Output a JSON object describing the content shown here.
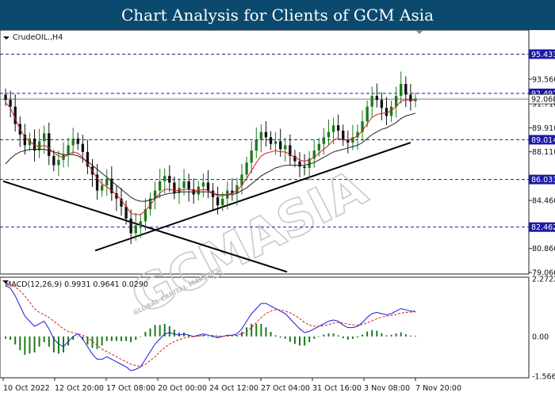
{
  "banner": {
    "title": "Chart Analysis for Clients of GCM Asia"
  },
  "watermark": {
    "text": "GCMASIA",
    "subtext": "GLOBAL CAPITAL MARKETS"
  },
  "chart_data": [
    {
      "type": "candlestick",
      "title": "CrudeOIL.,H4",
      "ylim": [
        79.06,
        97.0
      ],
      "y_ticks": [
        "93.560",
        "91.710",
        "89.910",
        "88.110",
        "84.460",
        "80.860",
        "79.060"
      ],
      "x_ticks": [
        "10 Oct 2022",
        "12 Oct 20:00",
        "17 Oct 08:00",
        "20 Oct 00:00",
        "24 Oct 12:00",
        "27 Oct 04:00",
        "31 Oct 16:00",
        "3 Nov 08:00",
        "7 Nov 20:00"
      ],
      "price_levels": [
        {
          "label": "95.433",
          "value": 95.433,
          "highlight": true
        },
        {
          "label": "92.492",
          "value": 92.492,
          "highlight": true
        },
        {
          "label": "92.060",
          "value": 92.06,
          "highlight": false
        },
        {
          "label": "89.014",
          "value": 89.014,
          "highlight": true
        },
        {
          "label": "86.033",
          "value": 86.033,
          "highlight": true
        },
        {
          "label": "82.462",
          "value": 82.462,
          "highlight": true
        }
      ],
      "close_series": [
        92.0,
        91.5,
        90.2,
        89.4,
        88.6,
        89.1,
        88.2,
        88.9,
        89.5,
        87.8,
        87.1,
        87.5,
        87.9,
        88.6,
        89.1,
        88.7,
        88.1,
        87.0,
        86.4,
        85.2,
        85.6,
        86.1,
        85.0,
        84.6,
        84.0,
        83.1,
        82.0,
        82.6,
        82.9,
        83.8,
        84.6,
        85.2,
        85.9,
        86.3,
        85.8,
        85.0,
        85.4,
        85.9,
        85.3,
        84.9,
        85.5,
        85.8,
        85.2,
        84.7,
        84.1,
        84.6,
        85.2,
        85.0,
        85.6,
        86.4,
        87.3,
        88.2,
        89.0,
        89.6,
        89.2,
        88.7,
        88.9,
        88.3,
        88.6,
        87.8,
        87.4,
        87.0,
        86.9,
        87.6,
        88.2,
        88.7,
        89.2,
        89.6,
        90.1,
        89.7,
        89.0,
        88.8,
        89.2,
        89.6,
        90.4,
        91.5,
        92.3,
        92.0,
        91.4,
        90.8,
        91.5,
        92.3,
        93.2,
        92.4,
        91.9,
        92.1
      ],
      "sma_fast": [
        91.8,
        91.4,
        90.6,
        89.8,
        89.2,
        88.9,
        88.6,
        88.5,
        88.6,
        88.4,
        88.0,
        87.8,
        87.7,
        87.9,
        88.1,
        88.0,
        87.7,
        87.2,
        86.7,
        86.1,
        85.7,
        85.5,
        85.2,
        84.9,
        84.5,
        84.0,
        83.5,
        83.4,
        83.4,
        83.7,
        84.1,
        84.6,
        85.0,
        85.3,
        85.3,
        85.2,
        85.2,
        85.3,
        85.3,
        85.2,
        85.2,
        85.3,
        85.2,
        85.0,
        84.8,
        84.8,
        84.9,
        85.0,
        85.2,
        85.6,
        86.1,
        86.7,
        87.3,
        87.8,
        88.0,
        88.1,
        88.2,
        88.1,
        88.1,
        87.9,
        87.7,
        87.5,
        87.4,
        87.5,
        87.7,
        88.0,
        88.3,
        88.6,
        89.0,
        89.1,
        89.0,
        89.0,
        89.1,
        89.3,
        89.7,
        90.2,
        90.7,
        90.9,
        91.0,
        91.0,
        91.2,
        91.5,
        91.9,
        92.0,
        92.0,
        92.0
      ],
      "sma_slow": [
        87.2,
        87.6,
        87.9,
        88.1,
        88.2,
        88.3,
        88.3,
        88.3,
        88.3,
        88.2,
        88.1,
        88.0,
        87.9,
        87.9,
        87.9,
        87.8,
        87.6,
        87.4,
        87.1,
        86.8,
        86.5,
        86.2,
        85.9,
        85.6,
        85.3,
        85.0,
        84.7,
        84.5,
        84.4,
        84.4,
        84.5,
        84.6,
        84.8,
        84.9,
        85.0,
        85.0,
        85.1,
        85.1,
        85.1,
        85.1,
        85.1,
        85.1,
        85.1,
        85.0,
        84.9,
        84.9,
        84.9,
        84.9,
        85.0,
        85.2,
        85.4,
        85.7,
        86.0,
        86.3,
        86.5,
        86.7,
        86.9,
        87.0,
        87.1,
        87.1,
        87.1,
        87.1,
        87.1,
        87.2,
        87.3,
        87.5,
        87.7,
        87.9,
        88.1,
        88.2,
        88.3,
        88.4,
        88.5,
        88.6,
        88.8,
        89.1,
        89.4,
        89.6,
        89.8,
        89.9,
        90.1,
        90.3,
        90.6,
        90.8,
        90.9,
        91.0
      ],
      "trendlines": [
        {
          "name": "support",
          "from": [
            0.175,
            80.7
          ],
          "to": [
            0.775,
            88.8
          ]
        },
        {
          "name": "upper-trend",
          "from": [
            0.0,
            85.9
          ],
          "to": [
            0.54,
            79.1
          ]
        }
      ],
      "colors": {
        "bull": "#1d7a1d",
        "bear": "#111111",
        "sma_fast": "#d22020",
        "sma_slow": "#222222",
        "level": "#1a1aa6",
        "trend": "#000000"
      }
    },
    {
      "type": "macd",
      "title": "MACD(12,26,9) 0.9931 0.9641 0.0290",
      "ylim": [
        -1.5669,
        2.2722
      ],
      "y_ticks": [
        "2.2722",
        "0.00",
        "-1.5669"
      ],
      "macd": [
        2.0,
        1.9,
        1.6,
        1.2,
        0.8,
        0.6,
        0.4,
        0.5,
        0.6,
        0.3,
        -0.1,
        -0.3,
        -0.4,
        -0.2,
        0.0,
        0.1,
        -0.1,
        -0.4,
        -0.7,
        -0.9,
        -0.9,
        -0.8,
        -0.9,
        -1.0,
        -1.1,
        -1.2,
        -1.35,
        -1.3,
        -1.2,
        -0.9,
        -0.6,
        -0.3,
        -0.1,
        0.1,
        0.15,
        0.1,
        0.05,
        0.1,
        0.05,
        0.0,
        0.05,
        0.1,
        0.05,
        0.0,
        -0.05,
        0.0,
        0.05,
        0.05,
        0.1,
        0.3,
        0.6,
        0.9,
        1.1,
        1.3,
        1.3,
        1.2,
        1.1,
        1.0,
        0.9,
        0.7,
        0.5,
        0.3,
        0.15,
        0.2,
        0.3,
        0.4,
        0.5,
        0.6,
        0.65,
        0.6,
        0.45,
        0.35,
        0.35,
        0.4,
        0.55,
        0.75,
        0.9,
        0.95,
        0.9,
        0.85,
        0.9,
        1.0,
        1.1,
        1.05,
        1.0,
        0.99
      ],
      "signal": [
        2.1,
        2.05,
        1.95,
        1.8,
        1.6,
        1.35,
        1.1,
        0.95,
        0.85,
        0.75,
        0.6,
        0.45,
        0.3,
        0.2,
        0.15,
        0.1,
        0.05,
        -0.05,
        -0.2,
        -0.35,
        -0.5,
        -0.6,
        -0.7,
        -0.8,
        -0.9,
        -1.0,
        -1.1,
        -1.15,
        -1.18,
        -1.1,
        -0.95,
        -0.8,
        -0.6,
        -0.45,
        -0.3,
        -0.2,
        -0.12,
        -0.07,
        -0.03,
        0.0,
        0.02,
        0.04,
        0.05,
        0.04,
        0.02,
        0.01,
        0.02,
        0.03,
        0.05,
        0.1,
        0.2,
        0.35,
        0.55,
        0.75,
        0.9,
        1.0,
        1.05,
        1.05,
        1.0,
        0.93,
        0.83,
        0.7,
        0.55,
        0.45,
        0.4,
        0.4,
        0.42,
        0.47,
        0.52,
        0.55,
        0.53,
        0.49,
        0.46,
        0.45,
        0.47,
        0.53,
        0.62,
        0.7,
        0.76,
        0.8,
        0.83,
        0.87,
        0.92,
        0.95,
        0.96,
        0.9641
      ],
      "colors": {
        "macd": "#1a1ad6",
        "signal": "#d22020",
        "hist": "#1d7a1d"
      }
    }
  ]
}
